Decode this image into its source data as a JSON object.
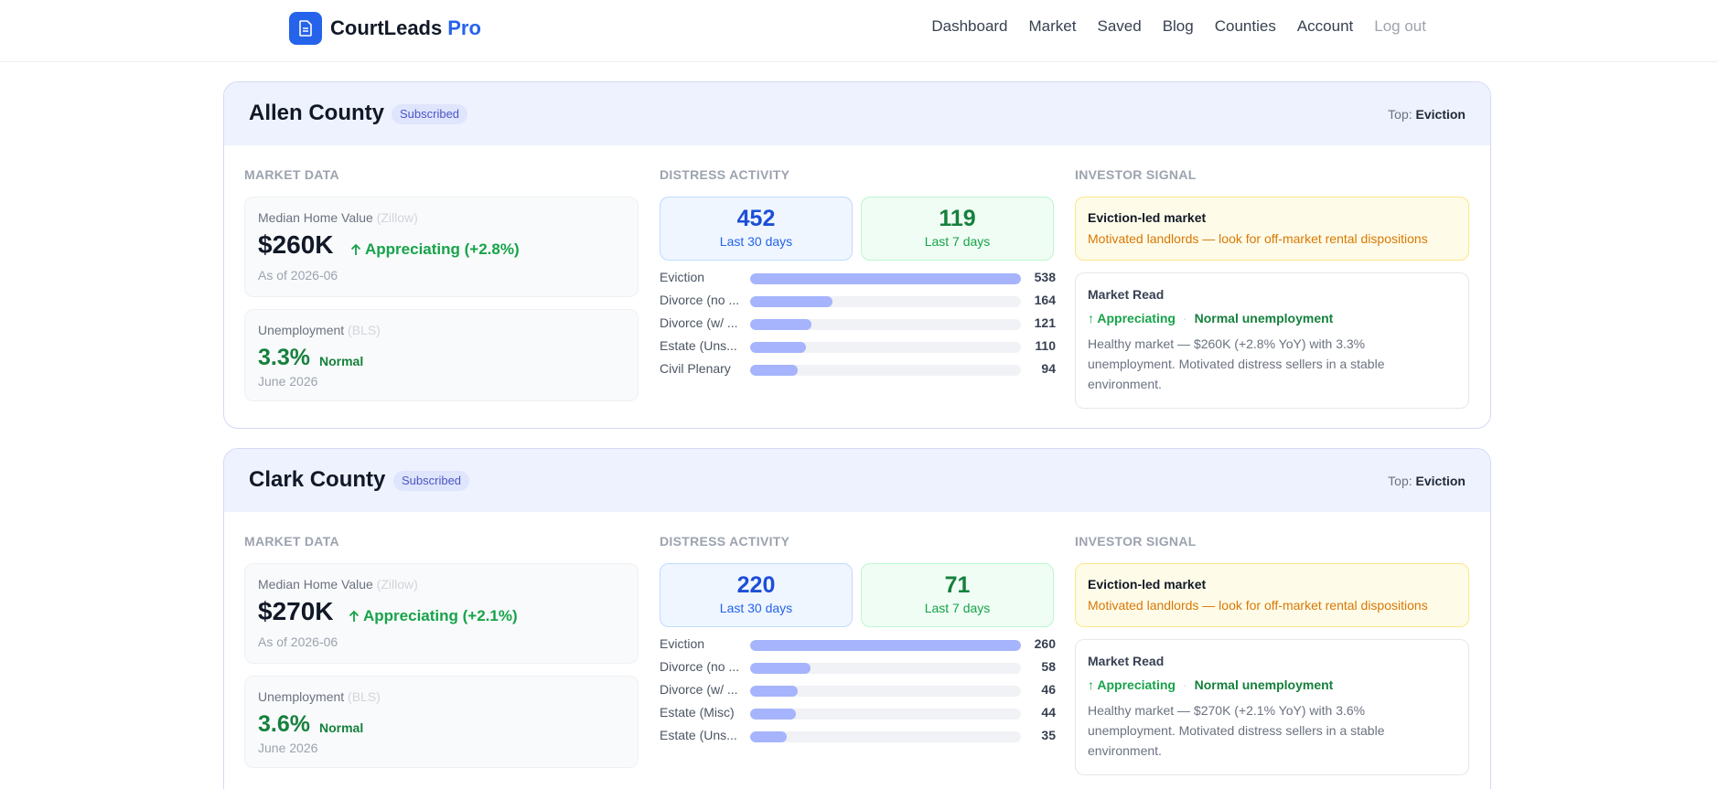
{
  "brand": {
    "name": "CourtLeads",
    "suffix": "Pro"
  },
  "nav": [
    "Dashboard",
    "Market",
    "Saved",
    "Blog",
    "Counties",
    "Account",
    "Log out"
  ],
  "sections": {
    "market": "MARKET DATA",
    "distress": "DISTRESS ACTIVITY",
    "signal": "INVESTOR SIGNAL"
  },
  "labels": {
    "median": "Median Home Value",
    "zillow": "(Zillow)",
    "unemployment": "Unemployment",
    "bls": "(BLS)",
    "last30": "Last 30 days",
    "last7": "Last 7 days",
    "top": "Top:",
    "market_read": "Market Read",
    "dot": "·"
  },
  "counties": [
    {
      "name": "Allen County",
      "badge": "Subscribed",
      "top": "Eviction",
      "median_value": "$260K",
      "trend": "Appreciating (+2.8%)",
      "as_of": "As of 2026-06",
      "unemployment": "3.3%",
      "unemp_status": "Normal",
      "unemp_date": "June 2026",
      "last30": "452",
      "last7": "119",
      "bars": [
        {
          "label": "Eviction",
          "value": 538
        },
        {
          "label": "Divorce (no ...",
          "value": 164
        },
        {
          "label": "Divorce (w/ ...",
          "value": 121
        },
        {
          "label": "Estate (Uns...",
          "value": 110
        },
        {
          "label": "Civil Plenary",
          "value": 94
        }
      ],
      "signal_title": "Eviction-led market",
      "signal_desc": "Motivated landlords — look for off-market rental dispositions",
      "tag1": "Appreciating",
      "tag2": "Normal unemployment",
      "read_text": "Healthy market — $260K (+2.8% YoY) with 3.3% unemployment. Motivated distress sellers in a stable environment."
    },
    {
      "name": "Clark County",
      "badge": "Subscribed",
      "top": "Eviction",
      "median_value": "$270K",
      "trend": "Appreciating (+2.1%)",
      "as_of": "As of 2026-06",
      "unemployment": "3.6%",
      "unemp_status": "Normal",
      "unemp_date": "June 2026",
      "last30": "220",
      "last7": "71",
      "bars": [
        {
          "label": "Eviction",
          "value": 260
        },
        {
          "label": "Divorce (no ...",
          "value": 58
        },
        {
          "label": "Divorce (w/ ...",
          "value": 46
        },
        {
          "label": "Estate (Misc)",
          "value": 44
        },
        {
          "label": "Estate (Uns...",
          "value": 35
        }
      ],
      "signal_title": "Eviction-led market",
      "signal_desc": "Motivated landlords — look for off-market rental dispositions",
      "tag1": "Appreciating",
      "tag2": "Normal unemployment",
      "read_text": "Healthy market — $270K (+2.1% YoY) with 3.6% unemployment. Motivated distress sellers in a stable environment."
    }
  ]
}
